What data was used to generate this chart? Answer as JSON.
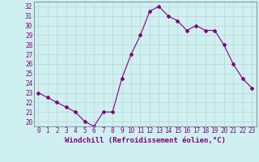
{
  "x": [
    0,
    1,
    2,
    3,
    4,
    5,
    6,
    7,
    8,
    9,
    10,
    11,
    12,
    13,
    14,
    15,
    16,
    17,
    18,
    19,
    20,
    21,
    22,
    23
  ],
  "y": [
    23,
    22.5,
    22,
    21.5,
    21,
    20,
    19.5,
    21,
    21,
    24.5,
    27,
    29,
    31.5,
    32,
    31,
    30.5,
    29.5,
    30,
    29.5,
    29.5,
    28,
    26,
    24.5,
    23.5
  ],
  "xlabel": "Windchill (Refroidissement éolien,°C)",
  "ylim": [
    19.5,
    32.5
  ],
  "yticks": [
    20,
    21,
    22,
    23,
    24,
    25,
    26,
    27,
    28,
    29,
    30,
    31,
    32
  ],
  "xlim": [
    -0.5,
    23.5
  ],
  "xticks": [
    0,
    1,
    2,
    3,
    4,
    5,
    6,
    7,
    8,
    9,
    10,
    11,
    12,
    13,
    14,
    15,
    16,
    17,
    18,
    19,
    20,
    21,
    22,
    23
  ],
  "line_color": "#800080",
  "marker": "D",
  "marker_size": 2.0,
  "bg_color": "#cff0f0",
  "grid_color": "#c0d8d8",
  "tick_label_fontsize": 5.5,
  "xlabel_fontsize": 6.5
}
